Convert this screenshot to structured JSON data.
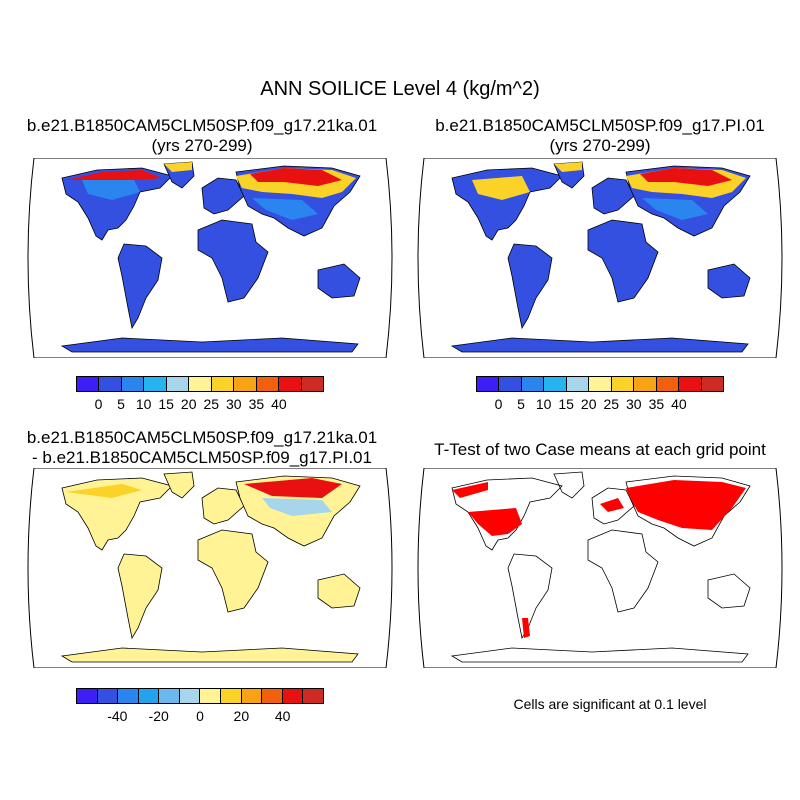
{
  "title": "ANN SOILICE Level 4 (kg/m^2)",
  "panels": {
    "top_left": {
      "title_line1": "b.e21.B1850CAM5CLM50SP.f09_g17.21ka.01",
      "title_line2": "(yrs 270-299)"
    },
    "top_right": {
      "title_line1": "b.e21.B1850CAM5CLM50SP.f09_g17.PI.01",
      "title_line2": "(yrs 270-299)"
    },
    "bottom_left": {
      "title_line1": "b.e21.B1850CAM5CLM50SP.f09_g17.21ka.01",
      "title_line2": "- b.e21.B1850CAM5CLM50SP.f09_g17.PI.01"
    },
    "bottom_right": {
      "title_line1": "T-Test of two Case means at each grid point",
      "note": "Cells are significant at 0.1 level"
    }
  },
  "colorbars": {
    "field": {
      "colors": [
        "#3c1ff5",
        "#3350e0",
        "#2a85ef",
        "#25b4f0",
        "#a6d5ec",
        "#fff395",
        "#fbd227",
        "#f8a214",
        "#f0600f",
        "#e81010",
        "#cc2a22"
      ],
      "labels": [
        "0",
        "5",
        "10",
        "15",
        "20",
        "25",
        "30",
        "35",
        "40"
      ]
    },
    "diff": {
      "colors": [
        "#3c1ff5",
        "#3350e0",
        "#2a85ef",
        "#25a2ee",
        "#6ab8ee",
        "#a6d5ec",
        "#fff395",
        "#fbd227",
        "#f8a214",
        "#f0600f",
        "#e81010",
        "#cc2a22"
      ],
      "labels": [
        "-40",
        "-20",
        "0",
        "20",
        "40"
      ]
    }
  },
  "map_colors": {
    "ocean": "#ffffff",
    "land_low": "#3350e0",
    "land_mid": "#2a85ef",
    "land_high": "#fbd227",
    "land_max": "#e81010",
    "diff_zero": "#fff395",
    "diff_neg": "#a6d5ec",
    "significant": "#ff0000",
    "coastline": "#000000"
  }
}
